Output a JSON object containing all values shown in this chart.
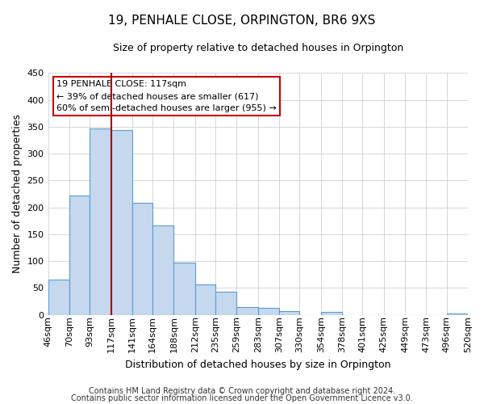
{
  "title": "19, PENHALE CLOSE, ORPINGTON, BR6 9XS",
  "subtitle": "Size of property relative to detached houses in Orpington",
  "xlabel": "Distribution of detached houses by size in Orpington",
  "ylabel": "Number of detached properties",
  "bar_values": [
    65,
    222,
    346,
    344,
    208,
    166,
    97,
    57,
    43,
    15,
    13,
    7,
    0,
    6,
    0,
    0,
    0,
    0,
    0,
    3
  ],
  "bin_edges": [
    46,
    70,
    93,
    117,
    141,
    164,
    188,
    212,
    235,
    259,
    283,
    307,
    330,
    354,
    378,
    401,
    425,
    449,
    473,
    496,
    520
  ],
  "bin_labels": [
    "46sqm",
    "70sqm",
    "93sqm",
    "117sqm",
    "141sqm",
    "164sqm",
    "188sqm",
    "212sqm",
    "235sqm",
    "259sqm",
    "283sqm",
    "307sqm",
    "330sqm",
    "354sqm",
    "378sqm",
    "401sqm",
    "425sqm",
    "449sqm",
    "473sqm",
    "496sqm",
    "520sqm"
  ],
  "bar_color": "#c5d8ed",
  "bar_edge_color": "#5b9bd5",
  "vline_x": 117,
  "vline_color": "#aa0000",
  "ylim": [
    0,
    450
  ],
  "yticks": [
    0,
    50,
    100,
    150,
    200,
    250,
    300,
    350,
    400,
    450
  ],
  "annotation_title": "19 PENHALE CLOSE: 117sqm",
  "annotation_line1": "← 39% of detached houses are smaller (617)",
  "annotation_line2": "60% of semi-detached houses are larger (955) →",
  "annotation_box_color": "#ffffff",
  "annotation_box_edge": "#cc0000",
  "footer1": "Contains HM Land Registry data © Crown copyright and database right 2024.",
  "footer2": "Contains public sector information licensed under the Open Government Licence v3.0.",
  "bg_color": "#ffffff",
  "grid_color": "#d0d0d0",
  "title_fontsize": 11,
  "subtitle_fontsize": 9,
  "axis_label_fontsize": 9,
  "tick_fontsize": 8,
  "footer_fontsize": 7,
  "ann_fontsize": 8
}
